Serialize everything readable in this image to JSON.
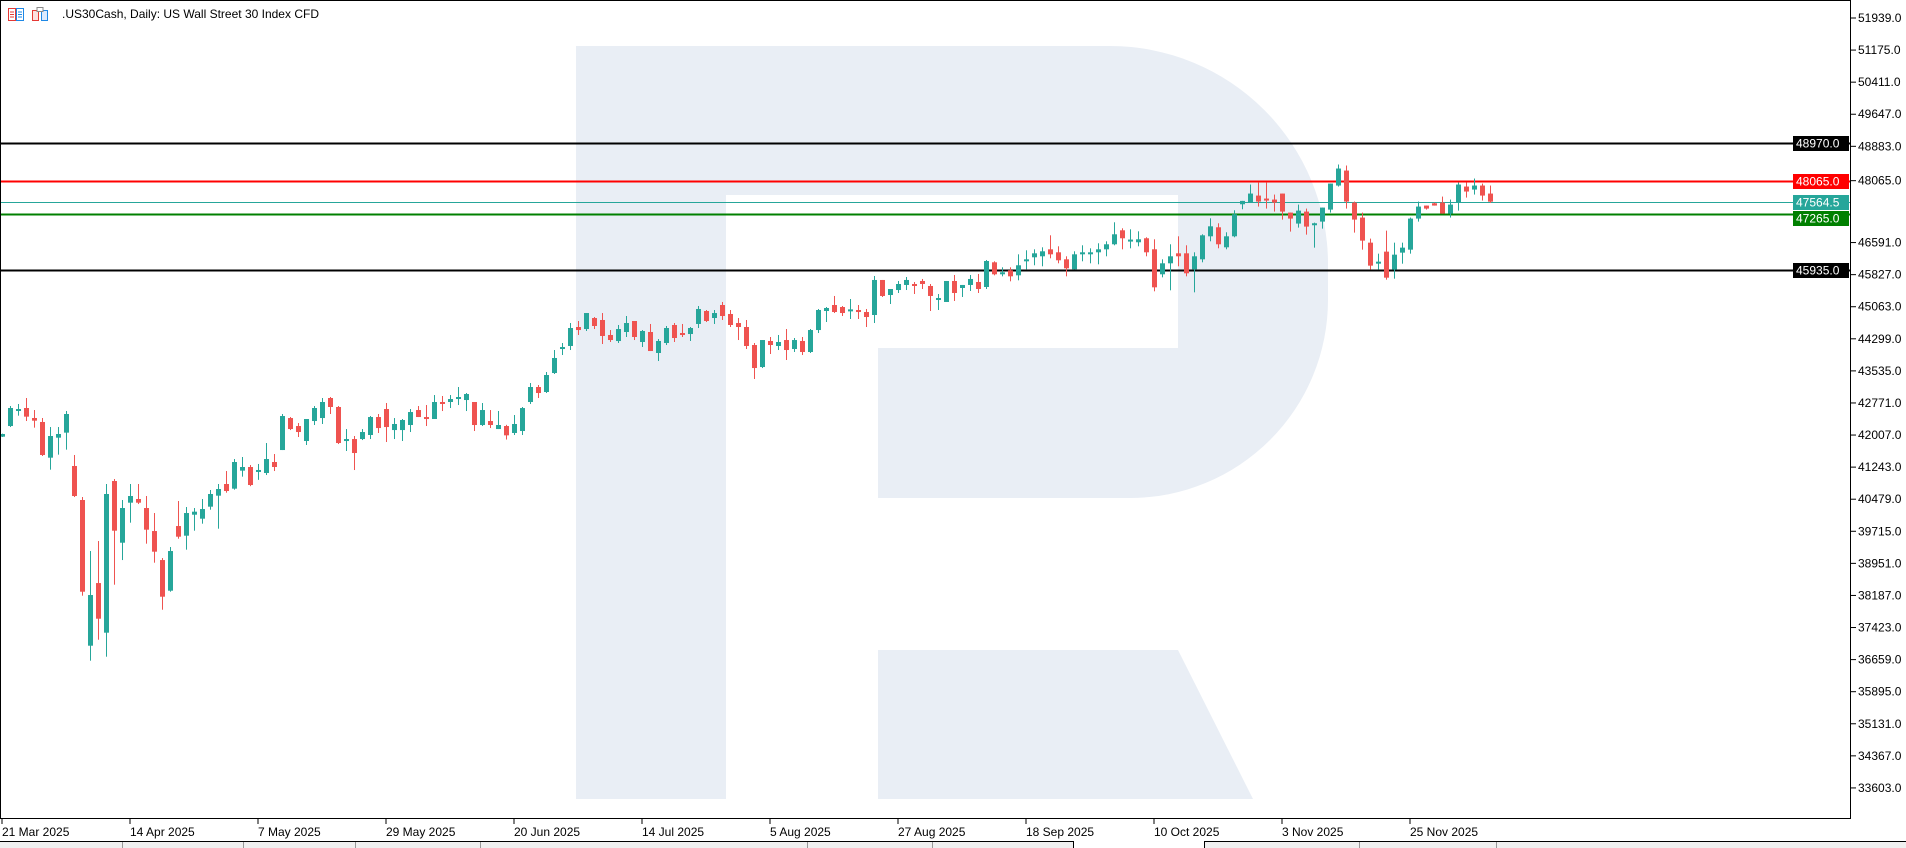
{
  "header": {
    "title": ".US30Cash, Daily:  US Wall Street 30 Index CFD",
    "icons": [
      "trade-panel-icon",
      "one-click-trading-icon"
    ]
  },
  "colors": {
    "bull": "#26a69a",
    "bear": "#ef5350",
    "watermark": "#e9eef5"
  },
  "chart_data": {
    "type": "candlestick",
    "title": ".US30Cash, Daily:  US Wall Street 30 Index CFD",
    "ylim": [
      32839,
      52703
    ],
    "grid": false,
    "y_ticks": [
      "51939.0",
      "51175.0",
      "50411.0",
      "49647.0",
      "48883.0",
      "48065.0",
      "46591.0",
      "45827.0",
      "45063.0",
      "44299.0",
      "43535.0",
      "42771.0",
      "42007.0",
      "41243.0",
      "40479.0",
      "39715.0",
      "38951.0",
      "38187.0",
      "37423.0",
      "36659.0",
      "35895.0",
      "35131.0",
      "34367.0",
      "33603.0"
    ],
    "x_ticks": [
      {
        "index": 0,
        "label": "21 Mar 2025"
      },
      {
        "index": 16,
        "label": "14 Apr 2025"
      },
      {
        "index": 32,
        "label": "7 May 2025"
      },
      {
        "index": 48,
        "label": "29 May 2025"
      },
      {
        "index": 64,
        "label": "20 Jun 2025"
      },
      {
        "index": 80,
        "label": "14 Jul 2025"
      },
      {
        "index": 96,
        "label": "5 Aug 2025"
      },
      {
        "index": 112,
        "label": "27 Aug 2025"
      },
      {
        "index": 128,
        "label": "18 Sep 2025"
      },
      {
        "index": 144,
        "label": "10 Oct 2025"
      },
      {
        "index": 160,
        "label": "3 Nov 2025"
      },
      {
        "index": 176,
        "label": "25 Nov 2025"
      }
    ],
    "levels": [
      {
        "price": 48970.0,
        "label": "48970.0",
        "color": "#000000",
        "type": "resistance"
      },
      {
        "price": 48065.0,
        "label": "48065.0",
        "color": "#ff0000",
        "type": "resistance"
      },
      {
        "price": 47564.5,
        "label": "47564.5",
        "color": "#26a69a",
        "type": "bid"
      },
      {
        "price": 47265.0,
        "label": "47265.0",
        "color": "#008000",
        "type": "support"
      },
      {
        "price": 45935.0,
        "label": "45935.0",
        "color": "#000000",
        "type": "support"
      }
    ],
    "candles_ohlc": [
      [
        41968,
        42040,
        41960,
        42032
      ],
      [
        42222,
        42699,
        42198,
        42651
      ],
      [
        42588,
        42746,
        42468,
        42627
      ],
      [
        42651,
        42889,
        42341,
        42445
      ],
      [
        42413,
        42603,
        42183,
        42349
      ],
      [
        42318,
        42413,
        41508,
        41532
      ],
      [
        41468,
        42198,
        41182,
        41984
      ],
      [
        41944,
        42198,
        41540,
        42032
      ],
      [
        42064,
        42580,
        41659,
        42508
      ],
      [
        41270,
        41532,
        40531,
        40555
      ],
      [
        40460,
        40531,
        38181,
        38276
      ],
      [
        36990,
        39245,
        36633,
        38197
      ],
      [
        38482,
        39483,
        37133,
        37633
      ],
      [
        37300,
        40841,
        36728,
        40603
      ],
      [
        40912,
        40960,
        38443,
        39729
      ],
      [
        39443,
        40460,
        39030,
        40269
      ],
      [
        40396,
        40841,
        39920,
        40555
      ],
      [
        40484,
        40841,
        40364,
        40396
      ],
      [
        40269,
        40555,
        39420,
        39753
      ],
      [
        39721,
        40150,
        38967,
        39229
      ],
      [
        39030,
        39078,
        37847,
        38157
      ],
      [
        38300,
        39340,
        38276,
        39245
      ],
      [
        39840,
        40436,
        39538,
        39586
      ],
      [
        39610,
        40293,
        39277,
        40150
      ],
      [
        40110,
        40269,
        39729,
        40182
      ],
      [
        40015,
        40484,
        39896,
        40245
      ],
      [
        40301,
        40698,
        40229,
        40603
      ],
      [
        40563,
        40841,
        39777,
        40722
      ],
      [
        40841,
        41150,
        40634,
        40674
      ],
      [
        40730,
        41436,
        40706,
        41365
      ],
      [
        41159,
        41484,
        41016,
        41246
      ],
      [
        41246,
        41293,
        40790,
        40817
      ],
      [
        41128,
        41318,
        40940,
        41175
      ],
      [
        41103,
        41817,
        41055,
        41436
      ],
      [
        41365,
        41555,
        41150,
        41246
      ],
      [
        41650,
        42508,
        41650,
        42460
      ],
      [
        42412,
        42436,
        42126,
        42150
      ],
      [
        42222,
        42293,
        41960,
        42079
      ],
      [
        41865,
        42389,
        41770,
        42389
      ],
      [
        42341,
        42698,
        42246,
        42651
      ],
      [
        42412,
        42889,
        42270,
        42794
      ],
      [
        42889,
        42913,
        42508,
        42675
      ],
      [
        42675,
        42698,
        41793,
        41817
      ],
      [
        41865,
        42150,
        41627,
        41912
      ],
      [
        41912,
        41984,
        41174,
        41579
      ],
      [
        41912,
        42150,
        41888,
        42079
      ],
      [
        42008,
        42460,
        41912,
        42436
      ],
      [
        42436,
        42508,
        42056,
        42174
      ],
      [
        42627,
        42770,
        41841,
        42198
      ],
      [
        42126,
        42412,
        41912,
        42270
      ],
      [
        42126,
        42389,
        41865,
        42365
      ],
      [
        42246,
        42627,
        42079,
        42555
      ],
      [
        42603,
        42698,
        42436,
        42436
      ],
      [
        42436,
        42722,
        42222,
        42389
      ],
      [
        42389,
        42960,
        42389,
        42794
      ],
      [
        42794,
        42937,
        42579,
        42778
      ],
      [
        42794,
        42960,
        42651,
        42865
      ],
      [
        42865,
        43151,
        42722,
        42913
      ],
      [
        42841,
        43008,
        42579,
        42984
      ],
      [
        42794,
        42794,
        42103,
        42246
      ],
      [
        42246,
        42770,
        42222,
        42603
      ],
      [
        42341,
        42603,
        42174,
        42246
      ],
      [
        42150,
        42580,
        42150,
        42246
      ],
      [
        42222,
        42250,
        41900,
        42000
      ],
      [
        42056,
        42484,
        42008,
        42270
      ],
      [
        42103,
        42675,
        42008,
        42650
      ],
      [
        42794,
        43246,
        42746,
        43151
      ],
      [
        43151,
        43199,
        42889,
        43008
      ],
      [
        43032,
        43508,
        43008,
        43437
      ],
      [
        43484,
        44032,
        43461,
        43842
      ],
      [
        44056,
        44199,
        43913,
        44103
      ],
      [
        44128,
        44675,
        44032,
        44556
      ],
      [
        44580,
        44723,
        44390,
        44508
      ],
      [
        44532,
        44913,
        44485,
        44913
      ],
      [
        44794,
        44818,
        44532,
        44604
      ],
      [
        44747,
        44913,
        44175,
        44366
      ],
      [
        44390,
        44508,
        44223,
        44270
      ],
      [
        44246,
        44628,
        44199,
        44532
      ],
      [
        44461,
        44842,
        44342,
        44675
      ],
      [
        44723,
        44723,
        44270,
        44342
      ],
      [
        44223,
        44508,
        44104,
        44485
      ],
      [
        44461,
        44652,
        44008,
        44008
      ],
      [
        43961,
        44294,
        43770,
        44247
      ],
      [
        44199,
        44604,
        44151,
        44556
      ],
      [
        44628,
        44675,
        44223,
        44318
      ],
      [
        44437,
        44652,
        44342,
        44390
      ],
      [
        44413,
        44580,
        44247,
        44556
      ],
      [
        44652,
        45080,
        44556,
        45009
      ],
      [
        44961,
        44985,
        44699,
        44723
      ],
      [
        44794,
        44985,
        44652,
        44913
      ],
      [
        45104,
        45176,
        44747,
        44842
      ],
      [
        44890,
        44985,
        44580,
        44628
      ],
      [
        44675,
        44794,
        44270,
        44580
      ],
      [
        44580,
        44747,
        44056,
        44128
      ],
      [
        44151,
        44199,
        43342,
        43603
      ],
      [
        43627,
        44270,
        43603,
        44270
      ],
      [
        44247,
        44342,
        43937,
        44151
      ],
      [
        44128,
        44390,
        44032,
        44223
      ],
      [
        44270,
        44532,
        43794,
        44032
      ],
      [
        44056,
        44318,
        43985,
        44270
      ],
      [
        44247,
        44342,
        43913,
        43985
      ],
      [
        43985,
        44532,
        43961,
        44508
      ],
      [
        44508,
        45009,
        44437,
        44985
      ],
      [
        44961,
        45056,
        44699,
        45033
      ],
      [
        45104,
        45319,
        44913,
        44937
      ],
      [
        45056,
        45080,
        44842,
        44913
      ],
      [
        44985,
        45247,
        44771,
        45000
      ],
      [
        44985,
        45104,
        44771,
        44937
      ],
      [
        44937,
        45009,
        44580,
        44818
      ],
      [
        44866,
        45795,
        44675,
        45700
      ],
      [
        45700,
        45700,
        45295,
        45319
      ],
      [
        45342,
        45485,
        45128,
        45485
      ],
      [
        45461,
        45676,
        45390,
        45604
      ],
      [
        45581,
        45771,
        45461,
        45700
      ],
      [
        45604,
        45652,
        45366,
        45557
      ],
      [
        45676,
        45724,
        45485,
        45604
      ],
      [
        45557,
        45604,
        44961,
        45319
      ],
      [
        45223,
        45366,
        44985,
        45271
      ],
      [
        45176,
        45676,
        45176,
        45676
      ],
      [
        45676,
        45819,
        45200,
        45390
      ],
      [
        45509,
        45581,
        45295,
        45581
      ],
      [
        45581,
        45819,
        45438,
        45724
      ],
      [
        45652,
        45843,
        45390,
        45485
      ],
      [
        45533,
        46176,
        45485,
        46152
      ],
      [
        46121,
        46145,
        45811,
        45835
      ],
      [
        45835,
        46002,
        45787,
        45883
      ],
      [
        45930,
        46002,
        45668,
        45787
      ],
      [
        45811,
        46311,
        45692,
        46050
      ],
      [
        46145,
        46407,
        45954,
        46192
      ],
      [
        46240,
        46430,
        46050,
        46335
      ],
      [
        46264,
        46478,
        46026,
        46383
      ],
      [
        46430,
        46764,
        46216,
        46311
      ],
      [
        46359,
        46502,
        46097,
        46169
      ],
      [
        46192,
        46264,
        45787,
        45978
      ],
      [
        45954,
        46383,
        45954,
        46311
      ],
      [
        46311,
        46526,
        46145,
        46359
      ],
      [
        46350,
        46454,
        46097,
        46359
      ],
      [
        46359,
        46574,
        46073,
        46430
      ],
      [
        46430,
        46621,
        46264,
        46550
      ],
      [
        46550,
        47074,
        46526,
        46788
      ],
      [
        46883,
        46931,
        46430,
        46693
      ],
      [
        46645,
        46907,
        46454,
        46662
      ],
      [
        46598,
        46859,
        46502,
        46669
      ],
      [
        46693,
        46717,
        46264,
        46359
      ],
      [
        46431,
        46669,
        45430,
        45525
      ],
      [
        45835,
        46192,
        45763,
        46097
      ],
      [
        46097,
        46550,
        45454,
        46264
      ],
      [
        46335,
        46740,
        46026,
        46264
      ],
      [
        46335,
        46526,
        45787,
        45859
      ],
      [
        45954,
        46359,
        45406,
        46264
      ],
      [
        46192,
        46788,
        46121,
        46764
      ],
      [
        46740,
        47169,
        46621,
        46978
      ],
      [
        46955,
        47050,
        46455,
        46550
      ],
      [
        46478,
        46836,
        46431,
        46740
      ],
      [
        46740,
        47360,
        46717,
        47265
      ],
      [
        47503,
        47583,
        47384,
        47583
      ],
      [
        47535,
        47973,
        47535,
        47758
      ],
      [
        47710,
        48028,
        47448,
        47567
      ],
      [
        47639,
        48028,
        47400,
        47591
      ],
      [
        47615,
        47734,
        47329,
        47543
      ],
      [
        47758,
        47758,
        47138,
        47329
      ],
      [
        47305,
        47305,
        46852,
        47162
      ],
      [
        47043,
        47495,
        46947,
        47352
      ],
      [
        47329,
        47400,
        46780,
        46971
      ],
      [
        47040,
        47066,
        46470,
        47051
      ],
      [
        47090,
        47424,
        46923,
        47424
      ],
      [
        47376,
        47996,
        47305,
        47996
      ],
      [
        47949,
        48450,
        47925,
        48354
      ],
      [
        48306,
        48426,
        47400,
        47567
      ],
      [
        47543,
        47567,
        46828,
        47138
      ],
      [
        47186,
        47305,
        46422,
        46637
      ],
      [
        46589,
        46685,
        45946,
        46041
      ],
      [
        46128,
        46327,
        45946,
        46136
      ],
      [
        46375,
        46875,
        45707,
        45755
      ],
      [
        45946,
        46589,
        45731,
        46303
      ],
      [
        46351,
        46589,
        46088,
        46470
      ],
      [
        46422,
        47186,
        46327,
        47162
      ],
      [
        47162,
        47567,
        47090,
        47448
      ],
      [
        47472,
        47472,
        47376,
        47400
      ],
      [
        47527,
        47543,
        47472,
        47472
      ],
      [
        47543,
        47686,
        47281,
        47281
      ],
      [
        47281,
        47615,
        47186,
        47495
      ],
      [
        47535,
        48020,
        47352,
        47973
      ],
      [
        47925,
        48020,
        47662,
        47806
      ],
      [
        47853,
        48116,
        47734,
        47949
      ],
      [
        47949,
        47996,
        47591,
        47710
      ],
      [
        47758,
        47949,
        47535,
        47564.5
      ]
    ]
  }
}
